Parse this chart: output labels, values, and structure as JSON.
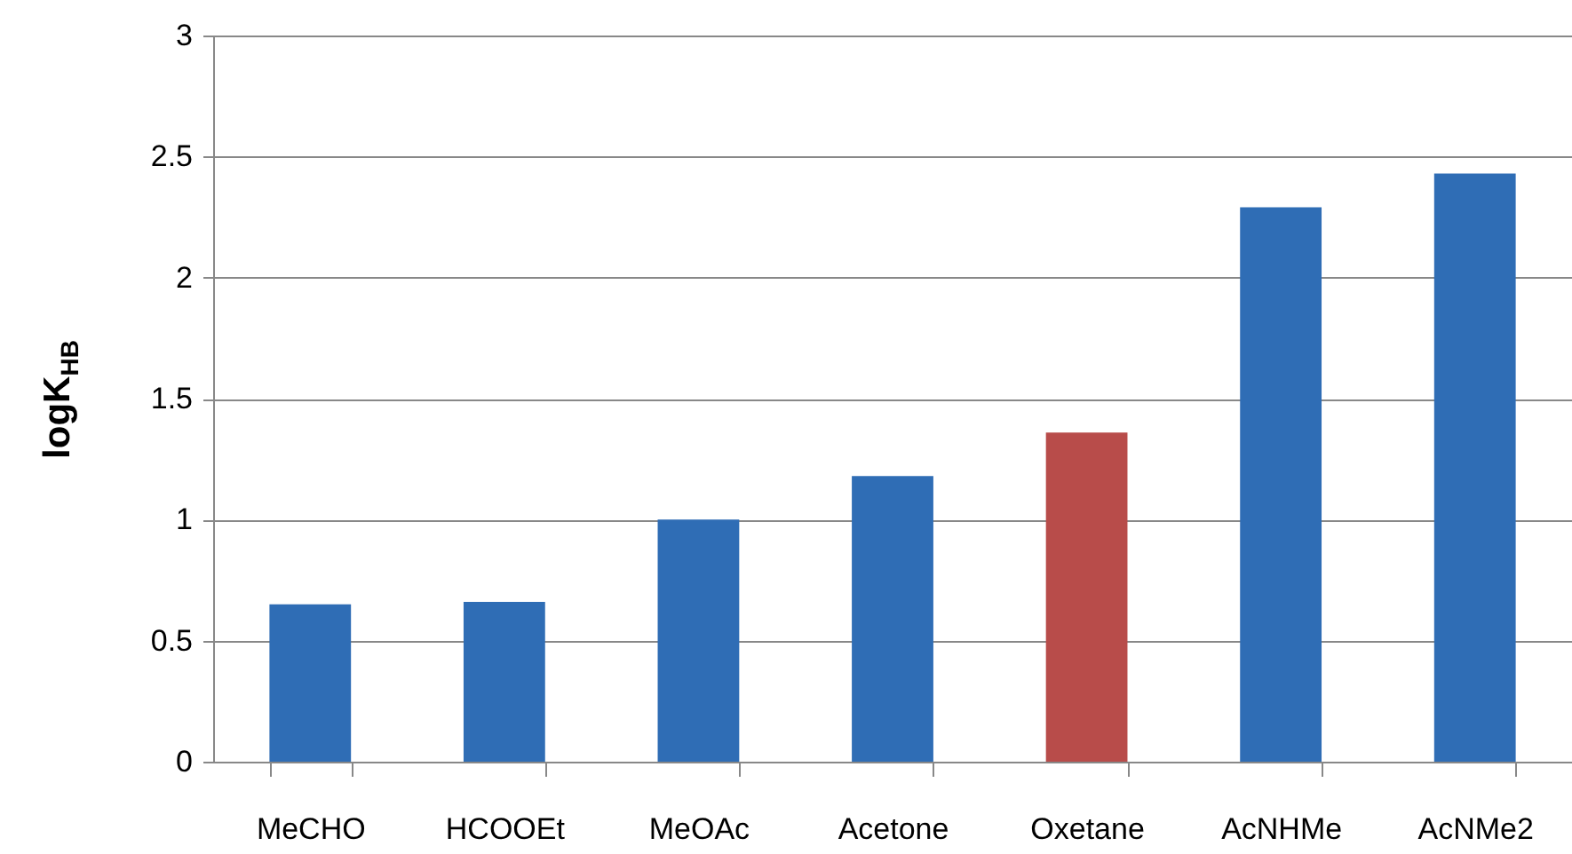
{
  "chart_data": {
    "type": "bar",
    "ylabel": "logK$_{HB}$",
    "categories": [
      "MeCHO",
      "HCOOEt",
      "MeOAc",
      "Acetone",
      "Oxetane",
      "AcNHMe",
      "AcNMe2"
    ],
    "values": [
      0.65,
      0.66,
      1.0,
      1.18,
      1.36,
      2.29,
      2.43
    ],
    "colors": [
      "#2f6db5",
      "#2f6db5",
      "#2f6db5",
      "#2f6db5",
      "#b84c4a",
      "#2f6db5",
      "#2f6db5"
    ],
    "ylim": [
      0,
      3
    ],
    "yticks": [
      0,
      0.5,
      1,
      1.5,
      2,
      2.5,
      3
    ],
    "grid": "y"
  }
}
